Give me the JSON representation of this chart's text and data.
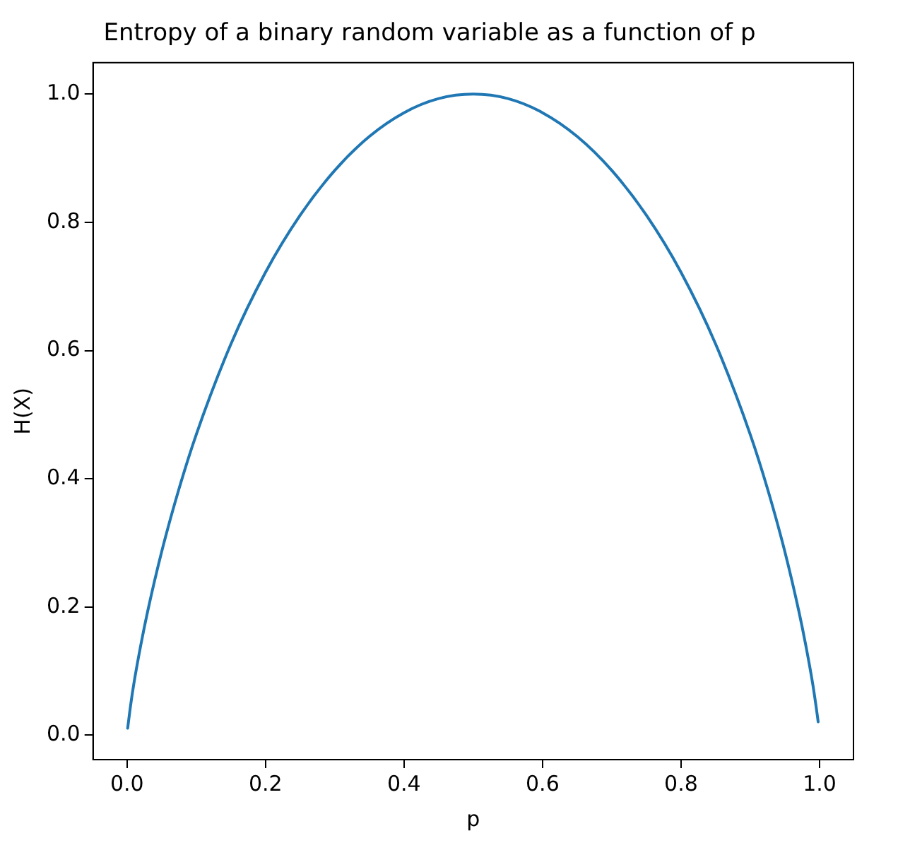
{
  "chart_data": {
    "type": "line",
    "title": "Entropy of a binary random variable as a function of p",
    "xlabel": "p",
    "ylabel": "H(X)",
    "x": [
      0.001,
      0.005,
      0.01,
      0.02,
      0.03,
      0.05,
      0.075,
      0.1,
      0.15,
      0.2,
      0.25,
      0.3,
      0.35,
      0.4,
      0.45,
      0.5,
      0.55,
      0.6,
      0.65,
      0.7,
      0.75,
      0.8,
      0.85,
      0.9,
      0.925,
      0.95,
      0.97,
      0.98,
      0.99,
      0.995,
      0.998
    ],
    "series": [
      {
        "color": "#1f77b4",
        "values": [
          0.011,
          0.045,
          0.081,
          0.141,
          0.194,
          0.286,
          0.384,
          0.469,
          0.61,
          0.722,
          0.811,
          0.881,
          0.934,
          0.971,
          0.993,
          1.0,
          0.993,
          0.971,
          0.934,
          0.881,
          0.811,
          0.722,
          0.61,
          0.469,
          0.384,
          0.286,
          0.194,
          0.141,
          0.081,
          0.045,
          0.021
        ]
      }
    ],
    "xlim": [
      -0.049,
      1.049
    ],
    "ylim": [
      -0.038,
      1.049
    ],
    "xticks": [
      {
        "value": 0,
        "label": "0.0"
      },
      {
        "value": 0.2,
        "label": "0.2"
      },
      {
        "value": 0.4,
        "label": "0.4"
      },
      {
        "value": 0.6,
        "label": "0.6"
      },
      {
        "value": 0.8,
        "label": "0.8"
      },
      {
        "value": 1,
        "label": "1.0"
      }
    ],
    "yticks": [
      {
        "value": 0,
        "label": "0.0"
      },
      {
        "value": 0.2,
        "label": "0.2"
      },
      {
        "value": 0.4,
        "label": "0.4"
      },
      {
        "value": 0.6,
        "label": "0.6"
      },
      {
        "value": 0.8,
        "label": "0.8"
      },
      {
        "value": 1,
        "label": "1.0"
      }
    ],
    "grid": false,
    "legend": false,
    "marker": "none",
    "line_style": "solid"
  }
}
